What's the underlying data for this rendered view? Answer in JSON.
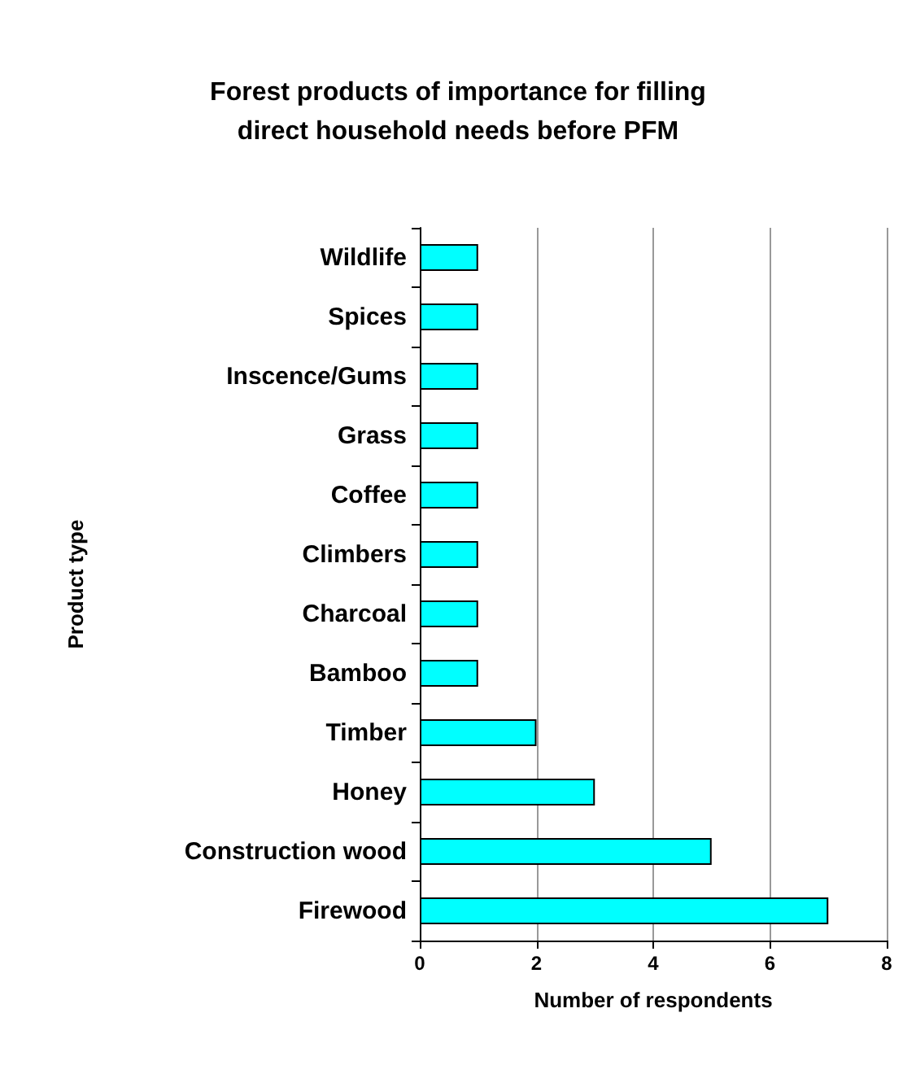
{
  "chart_data": {
    "type": "bar",
    "orientation": "horizontal",
    "title": "Forest products of importance for filling\ndirect household needs before PFM",
    "xlabel": "Number of respondents",
    "ylabel": "Product type",
    "categories": [
      "Wildlife",
      "Spices",
      "Inscence/Gums",
      "Grass",
      "Coffee",
      "Climbers",
      "Charcoal",
      "Bamboo",
      "Timber",
      "Honey",
      "Construction wood",
      "Firewood"
    ],
    "values": [
      1,
      1,
      1,
      1,
      1,
      1,
      1,
      1,
      2,
      3,
      5,
      7
    ],
    "color": "#00ffff",
    "xlim": [
      0,
      8
    ],
    "xticks": [
      0,
      2,
      4,
      6,
      8
    ],
    "grid": "x"
  }
}
